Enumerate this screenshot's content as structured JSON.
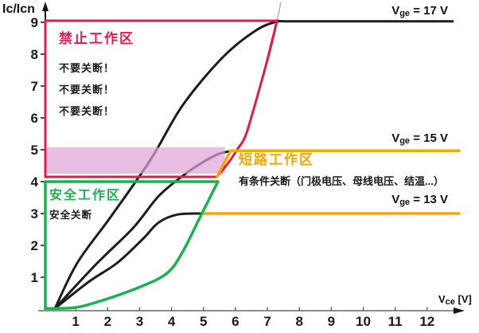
{
  "axes": {
    "y_label": "Ic/Icn",
    "x_unit_prefix": "V",
    "x_unit_sub": "ce",
    "x_unit_rest": " [V]"
  },
  "regions": {
    "forbidden": {
      "title": "禁止工作区",
      "warnings": [
        "不要关断！",
        "不要关断！",
        "不要关断！"
      ]
    },
    "safe": {
      "title": "安全工作区",
      "note": "安全关断"
    },
    "short_circuit": {
      "title": "短路工作区",
      "note": "有条件关断（门极电压、母线电压、结温...）"
    }
  },
  "vge_labels": [
    {
      "prefix": "V",
      "sub": "ge",
      "rest": " = 17 V"
    },
    {
      "prefix": "V",
      "sub": "ge",
      "rest": " = 15 V"
    },
    {
      "prefix": "V",
      "sub": "ge",
      "rest": " = 13 V"
    }
  ],
  "colors": {
    "red": "#e6194d",
    "green": "#1ab24e",
    "orange": "#f8a702",
    "orange_text": "#f6a400",
    "black_curve": "#1c1c1c",
    "axis": "#4a4a4a",
    "ghost": "#b5b5b5",
    "pink_fill": "rgba(222,162,214,0.7)",
    "tick_text": "#1a1a1a"
  },
  "chart_data": {
    "type": "line",
    "title": "IGBT safe operating area: Ic/Icn vs Vce",
    "xlabel": "Vce [V]",
    "ylabel": "Ic/Icn",
    "xlim": [
      0,
      13.1
    ],
    "ylim": [
      0,
      9.7
    ],
    "x_ticks": [
      1,
      2,
      3,
      4,
      5,
      6,
      7,
      8,
      9,
      10,
      11,
      12
    ],
    "y_ticks": [
      1,
      2,
      3,
      4,
      5,
      6,
      7,
      8,
      9
    ],
    "grid": false,
    "legend_position": "inline-right",
    "series": [
      {
        "name": "Vge = 17 V",
        "saturation_level": 9.0,
        "color_key": "black_curve",
        "width": 3,
        "points": [
          [
            0.35,
            0.02
          ],
          [
            1.05,
            1.45
          ],
          [
            2.1,
            2.9
          ],
          [
            3.35,
            4.7
          ],
          [
            4.35,
            6.4
          ],
          [
            5.6,
            7.9
          ],
          [
            6.6,
            8.72
          ],
          [
            7.3,
            9.02
          ],
          [
            7.9,
            9.03
          ],
          [
            12.8,
            9.03
          ]
        ]
      },
      {
        "name": "Vge = 15 V",
        "saturation_level": 5.0,
        "color_key": "black_curve",
        "width": 3,
        "points": [
          [
            0.35,
            0.02
          ],
          [
            1.65,
            1.42
          ],
          [
            2.8,
            2.55
          ],
          [
            3.6,
            3.55
          ],
          [
            4.4,
            4.22
          ],
          [
            5.0,
            4.62
          ],
          [
            5.5,
            4.88
          ],
          [
            5.95,
            4.97
          ]
        ]
      },
      {
        "name": "Vge = 13 V",
        "saturation_level": 3.0,
        "color_key": "black_curve",
        "width": 3,
        "points": [
          [
            0.35,
            0.02
          ],
          [
            1.4,
            0.85
          ],
          [
            2.3,
            1.45
          ],
          [
            3.1,
            2.2
          ],
          [
            3.6,
            2.72
          ],
          [
            4.2,
            2.97
          ],
          [
            5.05,
            3.0
          ]
        ]
      }
    ],
    "boundaries": {
      "forbidden_border": {
        "color_key": "red",
        "width": 3,
        "polyline": [
          [
            5.42,
            4.15
          ],
          [
            0.05,
            4.15
          ],
          [
            0.05,
            9.05
          ],
          [
            7.3,
            9.05
          ]
        ],
        "curve": [
          [
            5.42,
            4.15
          ],
          [
            5.8,
            4.62
          ],
          [
            6.05,
            5.0
          ],
          [
            6.3,
            5.4
          ],
          [
            6.55,
            6.2
          ],
          [
            6.9,
            7.45
          ],
          [
            7.1,
            8.2
          ],
          [
            7.3,
            9.05
          ]
        ]
      },
      "safe_border": {
        "color_key": "green",
        "width": 3.5,
        "polyline": [
          [
            5.45,
            4.0
          ],
          [
            0.05,
            4.0
          ],
          [
            0.05,
            0.02
          ]
        ],
        "curve": [
          [
            0.05,
            0.02
          ],
          [
            0.9,
            0.04
          ],
          [
            1.6,
            0.2
          ],
          [
            2.9,
            0.65
          ],
          [
            3.85,
            1.12
          ],
          [
            4.35,
            1.8
          ],
          [
            4.85,
            2.8
          ],
          [
            5.2,
            3.5
          ],
          [
            5.45,
            4.0
          ]
        ]
      },
      "short_circuit_lines": {
        "color_key": "orange",
        "width": 3.5,
        "diagonal": [
          [
            5.42,
            4.15
          ],
          [
            5.85,
            4.97
          ]
        ],
        "line_15v": [
          [
            5.85,
            4.97
          ],
          [
            13.0,
            4.97
          ]
        ],
        "line_13v": [
          [
            5.03,
            3.0
          ],
          [
            13.0,
            3.0
          ]
        ]
      }
    },
    "highlight_rect": {
      "x0": 0.08,
      "y0": 4.25,
      "x1": 5.67,
      "y1": 5.08
    },
    "ghost_stroke": [
      [
        6.25,
        5.3
      ],
      [
        6.6,
        6.3
      ],
      [
        6.9,
        7.5
      ],
      [
        7.1,
        8.35
      ],
      [
        7.3,
        9.05
      ],
      [
        7.42,
        9.62
      ]
    ]
  }
}
